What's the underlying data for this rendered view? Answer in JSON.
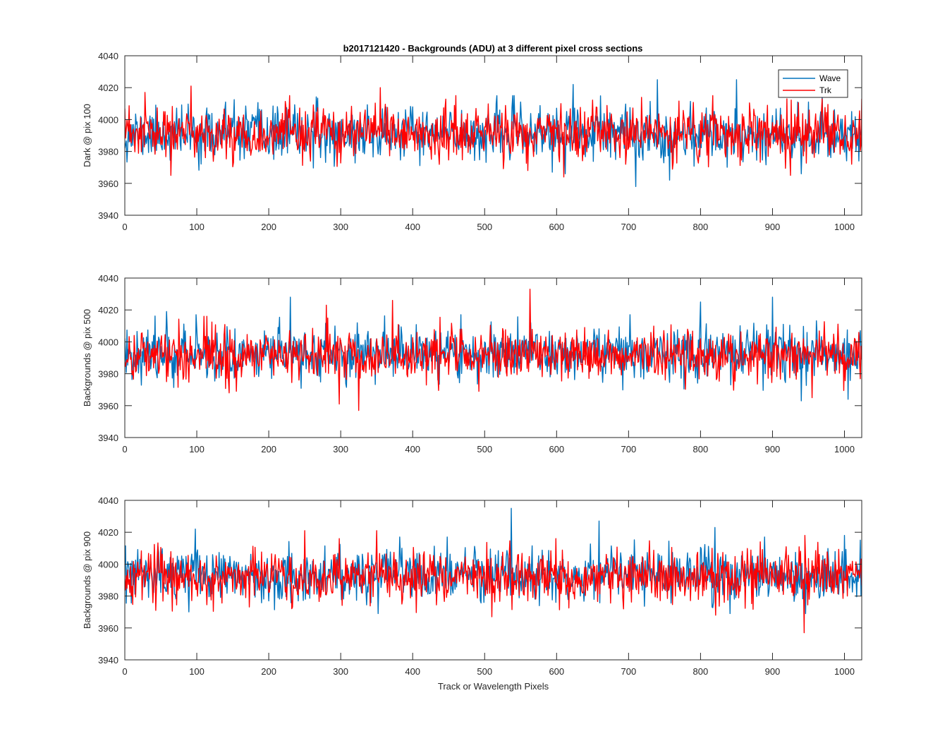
{
  "chart_data": [
    {
      "type": "line",
      "title": "b2017121420 - Backgrounds (ADU) at 3 different pixel cross sections",
      "xlabel": "",
      "ylabel": "Dark @ pix 100",
      "xlim": [
        0,
        1024
      ],
      "ylim": [
        3940,
        4040
      ],
      "xticks": [
        0,
        100,
        200,
        300,
        400,
        500,
        600,
        700,
        800,
        900,
        1000
      ],
      "yticks": [
        3940,
        3960,
        3980,
        4000,
        4020,
        4040
      ],
      "grid": false,
      "legend": [
        "Wave",
        "Trk"
      ],
      "legend_position": "top-right",
      "series": [
        {
          "name": "Wave",
          "color": "#0072BD",
          "mean": 3991,
          "std": 8,
          "n": 1024,
          "seed": 11,
          "extremes": [
            [
              140,
              4011
            ],
            [
              550,
              4011
            ],
            [
              623,
              4022
            ],
            [
              740,
              4025
            ],
            [
              850,
              4025
            ],
            [
              950,
              4011
            ],
            [
              935,
              4011
            ],
            [
              710,
              3958
            ],
            [
              757,
              3962
            ],
            [
              612,
              3966
            ],
            [
              940,
              3966
            ],
            [
              1020,
              3974
            ]
          ]
        },
        {
          "name": "Trk",
          "color": "#FF0000",
          "mean": 3991,
          "std": 8,
          "n": 1024,
          "seed": 23,
          "extremes": [
            [
              92,
              4021
            ],
            [
              28,
              4017
            ],
            [
              64,
              3965
            ],
            [
              355,
              4020
            ],
            [
              610,
              3964
            ],
            [
              1024,
              4013
            ],
            [
              920,
              4013
            ],
            [
              925,
              3965
            ],
            [
              1010,
              3972
            ]
          ]
        }
      ]
    },
    {
      "type": "line",
      "title": "",
      "xlabel": "",
      "ylabel": "Backgrounds @ pix 500",
      "xlim": [
        0,
        1024
      ],
      "ylim": [
        3940,
        4040
      ],
      "xticks": [
        0,
        100,
        200,
        300,
        400,
        500,
        600,
        700,
        800,
        900,
        1000
      ],
      "yticks": [
        3940,
        3960,
        3980,
        4000,
        4020,
        4040
      ],
      "grid": false,
      "legend": [],
      "series": [
        {
          "name": "Wave",
          "color": "#0072BD",
          "mean": 3993,
          "std": 8,
          "n": 1024,
          "seed": 37,
          "extremes": [
            [
              230,
              4028
            ],
            [
              58,
              4019
            ],
            [
              702,
              4017
            ],
            [
              800,
              4025
            ],
            [
              900,
              4028
            ],
            [
              940,
              3963
            ],
            [
              1005,
              3964
            ],
            [
              1022,
              4007
            ]
          ]
        },
        {
          "name": "Trk",
          "color": "#FF0000",
          "mean": 3992,
          "std": 8,
          "n": 1024,
          "seed": 41,
          "extremes": [
            [
              563,
              4033
            ],
            [
              372,
              4026
            ],
            [
              280,
              4023
            ],
            [
              325,
              3957
            ],
            [
              298,
              3961
            ],
            [
              155,
              3969
            ],
            [
              110,
              4016
            ],
            [
              955,
              3965
            ]
          ]
        }
      ]
    },
    {
      "type": "line",
      "title": "",
      "xlabel": "Track or Wavelength Pixels",
      "ylabel": "Backgrounds @ pix 900",
      "xlim": [
        0,
        1024
      ],
      "ylim": [
        3940,
        4040
      ],
      "xticks": [
        0,
        100,
        200,
        300,
        400,
        500,
        600,
        700,
        800,
        900,
        1000
      ],
      "yticks": [
        3940,
        3960,
        3980,
        4000,
        4020,
        4040
      ],
      "grid": false,
      "legend": [],
      "series": [
        {
          "name": "Wave",
          "color": "#0072BD",
          "mean": 3993,
          "std": 8,
          "n": 1024,
          "seed": 53,
          "extremes": [
            [
              537,
              4035
            ],
            [
              659,
              4027
            ],
            [
              98,
              4022
            ],
            [
              820,
              4023
            ],
            [
              1000,
              4018
            ],
            [
              1022,
              4015
            ]
          ]
        },
        {
          "name": "Trk",
          "color": "#FF0000",
          "mean": 3992,
          "std": 8,
          "n": 1024,
          "seed": 67,
          "extremes": [
            [
              944,
              3957
            ],
            [
              250,
              4021
            ],
            [
              350,
              4021
            ],
            [
              510,
              3967
            ],
            [
              945,
              4018
            ]
          ]
        }
      ]
    }
  ]
}
